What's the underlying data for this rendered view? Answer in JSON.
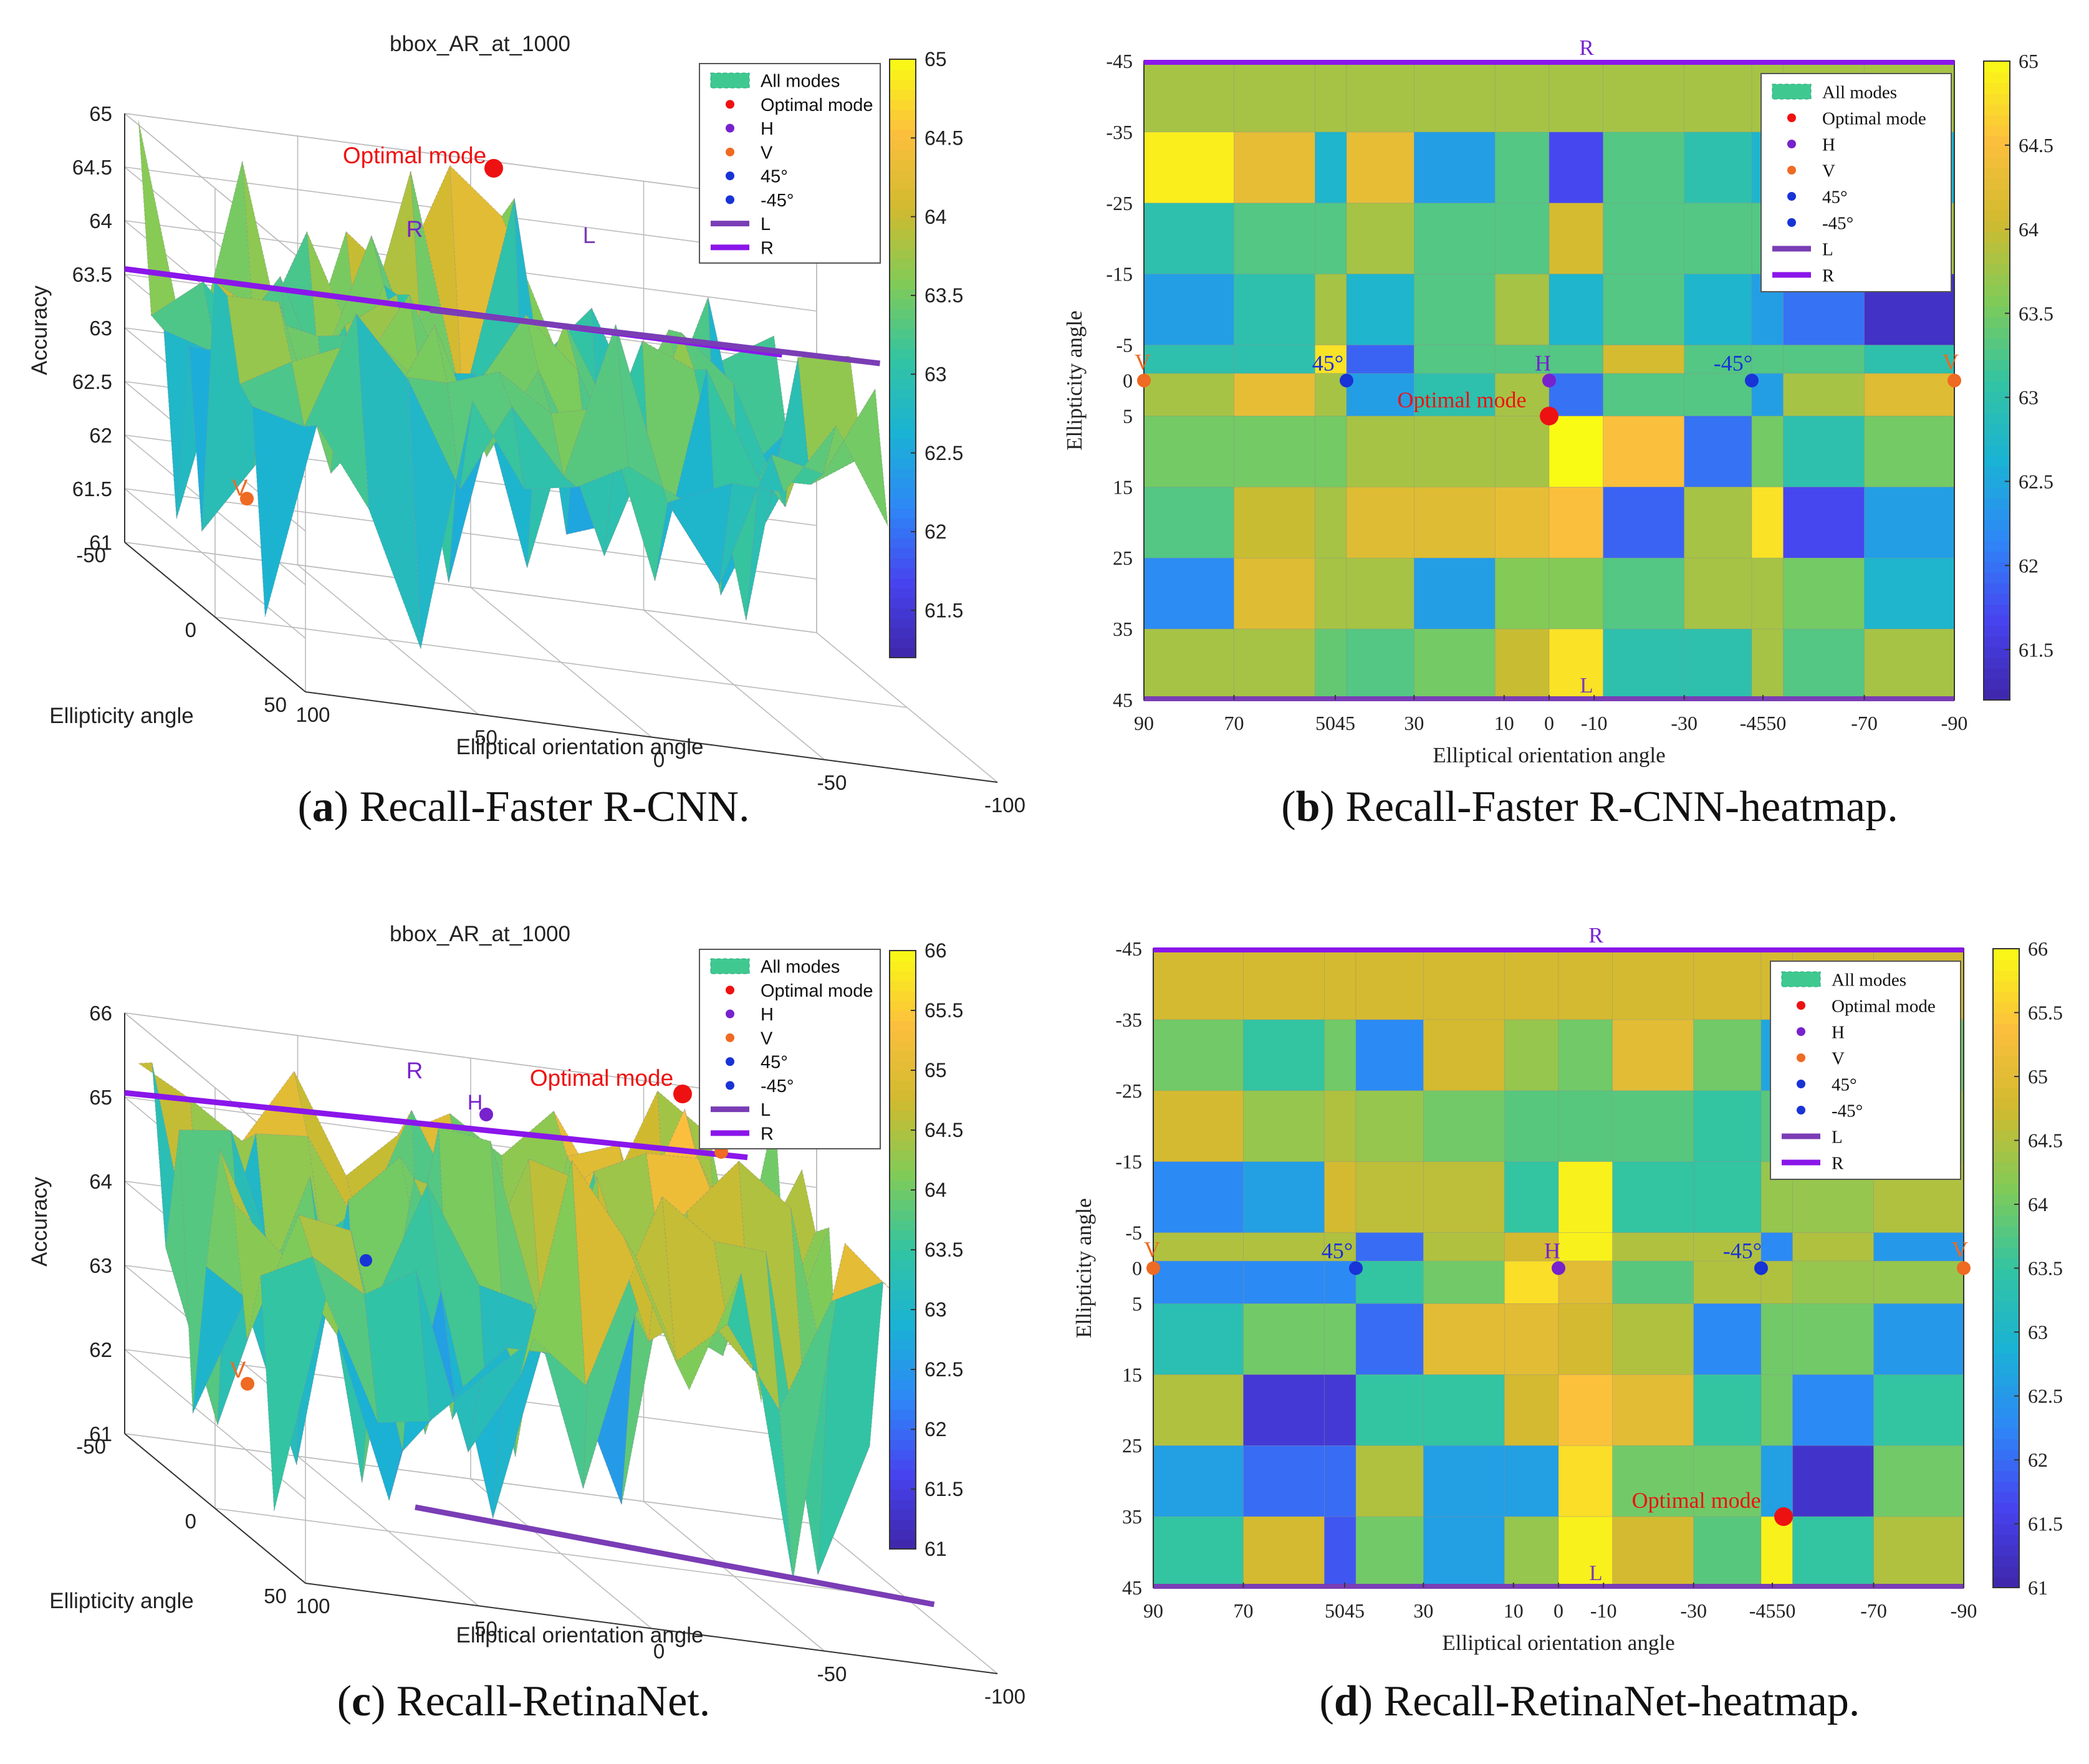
{
  "colorscale": [
    "#3e26a8",
    "#4743ef",
    "#2e87f7",
    "#1ab2d5",
    "#33c4a2",
    "#80cb58",
    "#d0ba2f",
    "#fcbf3d",
    "#f9fb15"
  ],
  "legend_items": [
    {
      "label": "All modes",
      "kind": "patch",
      "color": "#3fc991"
    },
    {
      "label": "Optimal mode",
      "kind": "dot",
      "color": "#ee1111"
    },
    {
      "label": "H",
      "kind": "dot",
      "color": "#7722cc"
    },
    {
      "label": "V",
      "kind": "dot",
      "color": "#ef6a22"
    },
    {
      "label": "45°",
      "kind": "dot",
      "color": "#1833d6"
    },
    {
      "label": "-45°",
      "kind": "dot",
      "color": "#1833d6"
    },
    {
      "label": "L",
      "kind": "line",
      "color": "#7a3db5"
    },
    {
      "label": "R",
      "kind": "line",
      "color": "#8a16ea"
    }
  ],
  "captions": {
    "a": {
      "letter": "a",
      "text": "Recall-Faster R-CNN."
    },
    "b": {
      "letter": "b",
      "text": "Recall-Faster R-CNN-heatmap."
    },
    "c": {
      "letter": "c",
      "text": "Recall-RetinaNet."
    },
    "d": {
      "letter": "d",
      "text": "Recall-RetinaNet-heatmap."
    }
  },
  "chart_data": [
    {
      "id": "a",
      "type": "surface3d",
      "title": "bbox_AR_at_1000",
      "zlabel": "Accuracy",
      "xlabel": "Elliptical orientation angle",
      "ylabel": "Ellipticity angle",
      "zlim": [
        61,
        65
      ],
      "zticks": [
        "61",
        "61.5",
        "62",
        "62.5",
        "63",
        "63.5",
        "64",
        "64.5",
        "65"
      ],
      "xticks": [
        "100",
        "50",
        "0",
        "-50",
        "-100"
      ],
      "yticks": [
        "-50",
        "0",
        "50"
      ],
      "colorbar": {
        "min": 61.2,
        "max": 65,
        "ticks": [
          "61.5",
          "62",
          "62.5",
          "63",
          "63.5",
          "64",
          "64.5",
          "65"
        ]
      },
      "annotations": {
        "optimal": "Optimal mode",
        "r": "R",
        "l": "L",
        "v": "V"
      }
    },
    {
      "id": "b",
      "type": "heatmap",
      "xlabel": "Elliptical orientation angle",
      "ylabel": "Ellipticity angle",
      "xticks": [
        "90",
        "70",
        "5045",
        "30",
        "10",
        "0",
        "-10",
        "-30",
        "-4550",
        "-70",
        "-90"
      ],
      "yticks": [
        "-45",
        "-35",
        "-25",
        "-15",
        "-5",
        "0",
        "5",
        "15",
        "25",
        "35",
        "45"
      ],
      "colorbar": {
        "min": 61.2,
        "max": 65,
        "ticks": [
          "61.5",
          "62",
          "62.5",
          "63",
          "63.5",
          "64",
          "64.5",
          "65"
        ]
      },
      "col_edges": [
        90,
        70,
        52,
        45,
        30,
        12,
        0,
        -12,
        -30,
        -45,
        -52,
        -70,
        -90
      ],
      "row_edges": [
        -45,
        -35,
        -25,
        -15,
        -5,
        -1,
        5,
        15,
        25,
        35,
        45
      ],
      "values": [
        [
          63.8,
          63.8,
          63.8,
          63.8,
          63.8,
          63.8,
          63.8,
          63.8,
          63.8,
          63.8,
          63.8,
          63.8
        ],
        [
          64.9,
          64.3,
          62.7,
          64.3,
          62.4,
          63.3,
          61.7,
          63.3,
          63.0,
          62.7,
          62.5,
          62.7
        ],
        [
          63.0,
          63.3,
          63.3,
          63.8,
          63.3,
          63.3,
          64.1,
          63.3,
          63.3,
          63.3,
          63.8,
          63.8
        ],
        [
          62.4,
          63.0,
          63.8,
          62.7,
          63.3,
          63.8,
          62.7,
          63.3,
          62.7,
          62.4,
          62.0,
          61.4
        ],
        [
          63.0,
          63.0,
          64.8,
          61.9,
          63.3,
          63.3,
          63.3,
          64.1,
          63.3,
          63.3,
          63.3,
          63.0
        ],
        [
          63.8,
          64.3,
          63.8,
          62.4,
          63.0,
          63.8,
          62.0,
          63.3,
          63.3,
          62.4,
          63.8,
          64.2
        ],
        [
          63.5,
          63.5,
          63.5,
          63.8,
          63.8,
          63.8,
          65.0,
          64.5,
          62.0,
          63.5,
          63.0,
          63.5
        ],
        [
          63.3,
          64.0,
          63.8,
          64.2,
          64.2,
          64.3,
          64.5,
          61.9,
          63.8,
          64.8,
          61.7,
          62.4
        ],
        [
          62.2,
          64.2,
          63.8,
          63.8,
          62.4,
          63.6,
          63.6,
          63.3,
          63.8,
          63.8,
          63.5,
          62.7
        ],
        [
          63.8,
          63.8,
          63.4,
          63.3,
          63.5,
          64.0,
          64.8,
          63.0,
          63.0,
          63.8,
          63.3,
          63.8
        ]
      ],
      "markers": [
        {
          "label": "V",
          "x": 90,
          "y": 0,
          "kind": "V"
        },
        {
          "label": "V",
          "x": -90,
          "y": 0,
          "kind": "V"
        },
        {
          "label": "45°",
          "x": 45,
          "y": 0,
          "kind": "D45"
        },
        {
          "label": "H",
          "x": 0,
          "y": 0,
          "kind": "H"
        },
        {
          "label": "-45°",
          "x": -45,
          "y": 0,
          "kind": "D45"
        },
        {
          "label": "Optimal mode",
          "x": 0,
          "y": 5,
          "kind": "OPT"
        }
      ],
      "lines": [
        {
          "label": "R",
          "y": -45
        },
        {
          "label": "L",
          "y": 45
        }
      ]
    },
    {
      "id": "c",
      "type": "surface3d",
      "title": "bbox_AR_at_1000",
      "zlabel": "Accuracy",
      "xlabel": "Elliptical orientation angle",
      "ylabel": "Ellipticity angle",
      "zlim": [
        61,
        66
      ],
      "zticks": [
        "61",
        "62",
        "63",
        "64",
        "65",
        "66"
      ],
      "xticks": [
        "100",
        "50",
        "0",
        "-50",
        "-100"
      ],
      "yticks": [
        "-50",
        "0",
        "50"
      ],
      "colorbar": {
        "min": 61,
        "max": 66,
        "ticks": [
          "61",
          "61.5",
          "62",
          "62.5",
          "63",
          "63.5",
          "64",
          "64.5",
          "65",
          "65.5",
          "66"
        ]
      },
      "annotations": {
        "optimal": "Optimal mode",
        "r": "R",
        "h": "H",
        "v": "V"
      }
    },
    {
      "id": "d",
      "type": "heatmap",
      "xlabel": "Elliptical orientation angle",
      "ylabel": "Ellipticity angle",
      "xticks": [
        "90",
        "70",
        "5045",
        "30",
        "10",
        "0",
        "-10",
        "-30",
        "-4550",
        "-70",
        "-90"
      ],
      "yticks": [
        "-45",
        "-35",
        "-25",
        "-15",
        "-5",
        "0",
        "5",
        "15",
        "25",
        "35",
        "45"
      ],
      "colorbar": {
        "min": 61,
        "max": 66,
        "ticks": [
          "61",
          "61.5",
          "62",
          "62.5",
          "63",
          "63.5",
          "64",
          "64.5",
          "65",
          "65.5",
          "66"
        ]
      },
      "col_edges": [
        90,
        70,
        52,
        45,
        30,
        12,
        0,
        -12,
        -30,
        -45,
        -52,
        -70,
        -90
      ],
      "row_edges": [
        -45,
        -35,
        -25,
        -15,
        -5,
        -1,
        5,
        15,
        25,
        35,
        45
      ],
      "values": [
        [
          64.8,
          64.8,
          64.8,
          64.8,
          64.8,
          64.8,
          64.8,
          64.8,
          64.8,
          64.8,
          64.8,
          64.8
        ],
        [
          64.0,
          63.5,
          64.0,
          62.3,
          64.8,
          64.3,
          64.0,
          65.0,
          64.0,
          62.7,
          64.0,
          64.0
        ],
        [
          64.8,
          64.3,
          64.5,
          64.3,
          64.0,
          63.8,
          63.8,
          63.8,
          63.5,
          63.8,
          64.3,
          64.3
        ],
        [
          62.3,
          62.6,
          64.8,
          64.6,
          64.6,
          63.5,
          65.9,
          63.5,
          63.5,
          64.3,
          64.3,
          64.5
        ],
        [
          64.5,
          64.5,
          64.5,
          62.0,
          64.5,
          64.8,
          65.9,
          64.5,
          64.5,
          62.3,
          64.5,
          62.5
        ],
        [
          62.3,
          62.3,
          62.3,
          63.5,
          64.0,
          65.7,
          65.0,
          63.8,
          64.5,
          64.5,
          64.3,
          64.3
        ],
        [
          63.3,
          64.0,
          64.0,
          62.0,
          65.0,
          65.0,
          64.8,
          64.5,
          62.3,
          64.0,
          64.0,
          62.5
        ],
        [
          64.5,
          61.4,
          61.4,
          63.5,
          63.5,
          64.8,
          65.4,
          65.0,
          63.5,
          64.0,
          62.3,
          63.5
        ],
        [
          62.6,
          62.0,
          62.0,
          64.5,
          62.6,
          62.6,
          65.7,
          64.0,
          64.0,
          62.6,
          61.3,
          64.0
        ],
        [
          63.5,
          64.8,
          61.8,
          64.0,
          62.6,
          64.3,
          65.9,
          64.8,
          63.8,
          65.9,
          63.5,
          64.5
        ]
      ],
      "markers": [
        {
          "label": "V",
          "x": 90,
          "y": 0,
          "kind": "V"
        },
        {
          "label": "V",
          "x": -90,
          "y": 0,
          "kind": "V"
        },
        {
          "label": "45°",
          "x": 45,
          "y": 0,
          "kind": "D45"
        },
        {
          "label": "H",
          "x": 0,
          "y": 0,
          "kind": "H"
        },
        {
          "label": "-45°",
          "x": -45,
          "y": 0,
          "kind": "D45"
        },
        {
          "label": "Optimal mode",
          "x": -50,
          "y": 35,
          "kind": "OPT"
        }
      ],
      "lines": [
        {
          "label": "R",
          "y": -45
        },
        {
          "label": "L",
          "y": 45
        }
      ]
    }
  ]
}
